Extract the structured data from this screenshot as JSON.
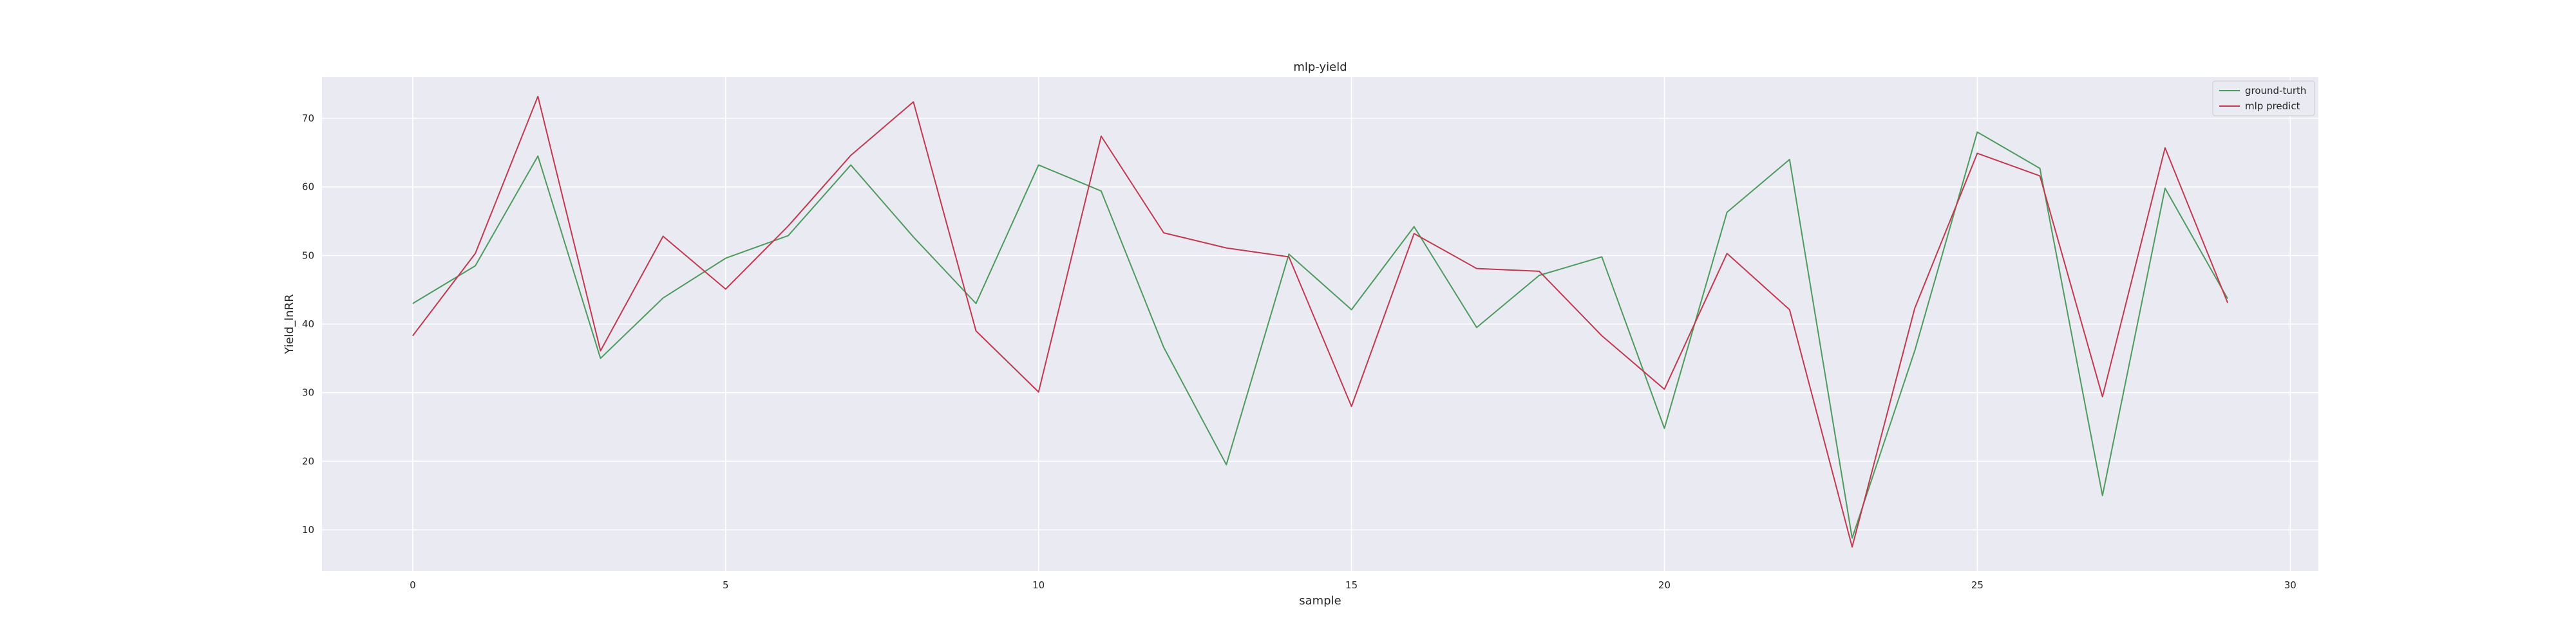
{
  "chart_data": {
    "type": "line",
    "title": "mlp-yield",
    "xlabel": "sample",
    "ylabel": "Yield_lnRR",
    "xlim": [
      -1.45,
      30.45
    ],
    "ylim": [
      4,
      76
    ],
    "xticks": [
      0,
      5,
      10,
      15,
      20,
      25,
      30
    ],
    "yticks": [
      10,
      20,
      30,
      40,
      50,
      60,
      70
    ],
    "grid": true,
    "legend_position": "top-right",
    "x": [
      0,
      1,
      2,
      3,
      4,
      5,
      6,
      7,
      8,
      9,
      10,
      11,
      12,
      13,
      14,
      15,
      16,
      17,
      18,
      19,
      20,
      21,
      22,
      23,
      24,
      25,
      26,
      27,
      28,
      29
    ],
    "series": [
      {
        "name": "ground-turth",
        "color": "#4c9a5c",
        "values": [
          43.0,
          48.5,
          64.5,
          35.0,
          43.8,
          49.6,
          52.9,
          63.2,
          52.7,
          43.0,
          63.2,
          59.4,
          36.6,
          19.5,
          50.2,
          42.1,
          54.2,
          39.5,
          47.1,
          49.8,
          24.8,
          56.3,
          64.0,
          8.8,
          36.1,
          68.0,
          62.7,
          15.0,
          59.8,
          43.7
        ]
      },
      {
        "name": "mlp predict",
        "color": "#c0394e",
        "values": [
          38.3,
          50.3,
          73.2,
          36.1,
          52.8,
          45.1,
          54.3,
          64.6,
          72.4,
          39.0,
          30.1,
          67.4,
          53.3,
          51.1,
          49.8,
          28.0,
          53.2,
          48.1,
          47.7,
          38.3,
          30.5,
          50.3,
          42.1,
          7.5,
          42.3,
          64.9,
          61.6,
          29.4,
          65.7,
          43.1
        ]
      }
    ]
  }
}
